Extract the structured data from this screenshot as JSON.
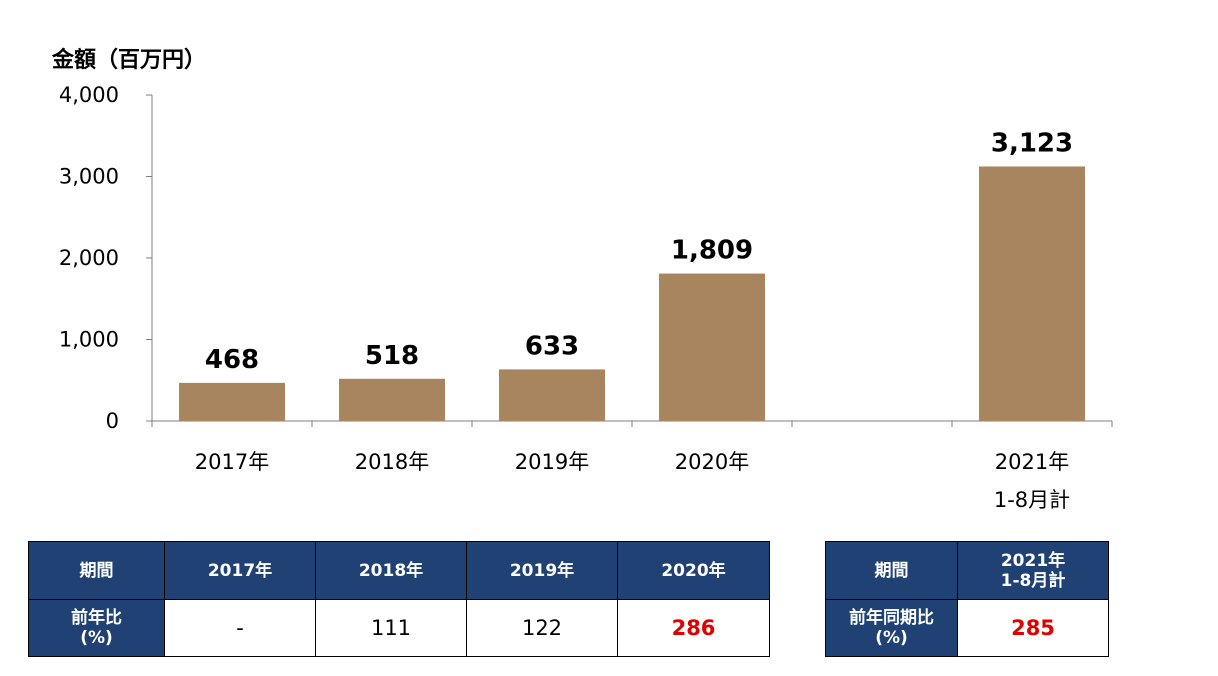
{
  "chart_data": {
    "type": "bar",
    "title": "金額（百万円）",
    "categories": [
      "2017年",
      "2018年",
      "2019年",
      "2020年",
      "",
      "2021年\n1-8月計"
    ],
    "values": [
      468,
      518,
      633,
      1809,
      null,
      3123
    ],
    "value_labels": [
      "468",
      "518",
      "633",
      "1,809",
      "",
      "3,123"
    ],
    "yticks": [
      "0",
      "1,000",
      "2,000",
      "3,000",
      "4,000"
    ],
    "ylim": [
      0,
      4000
    ],
    "grid": false,
    "bar_color": "#a8855e"
  },
  "table1": {
    "header": [
      "期間",
      "2017年",
      "2018年",
      "2019年",
      "2020年"
    ],
    "row_label": "前年比\n(%)",
    "values": [
      "-",
      "111",
      "122",
      "286"
    ]
  },
  "table2": {
    "header_label": "期間",
    "header_period": "2021年\n1-8月計",
    "row_label": "前年同期比\n(%)",
    "value": "285"
  },
  "colors": {
    "table_header_bg": "#1f4173",
    "highlight": "#e00000"
  }
}
